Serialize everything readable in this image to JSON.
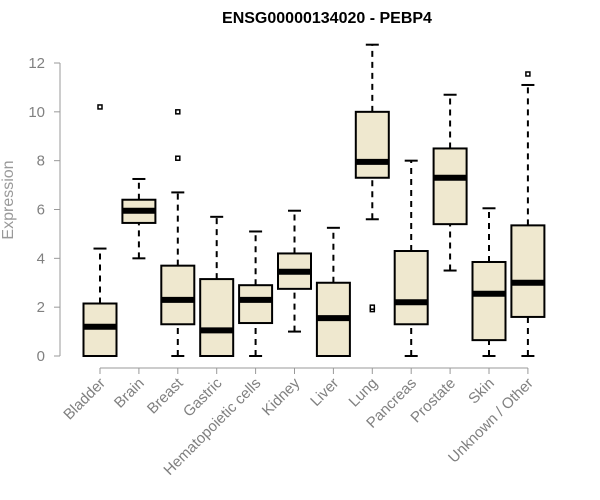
{
  "chart_data": {
    "type": "boxplot",
    "title": "ENSG00000134020 - PEBP4",
    "xlabel": "",
    "ylabel": "Expression",
    "ylim": [
      0,
      12.8
    ],
    "yticks": [
      0,
      2,
      4,
      6,
      8,
      10,
      12
    ],
    "grid": false,
    "categories": [
      "Bladder",
      "Brain",
      "Breast",
      "Gastric",
      "Hematopoietic cells",
      "Kidney",
      "Liver",
      "Lung",
      "Pancreas",
      "Prostate",
      "Skin",
      "Unknown / Other"
    ],
    "boxes": [
      {
        "name": "Bladder",
        "min": 0,
        "q1": 0,
        "median": 1.2,
        "q3": 2.15,
        "max": 4.4,
        "outliers": [
          10.2
        ]
      },
      {
        "name": "Brain",
        "min": 4.0,
        "q1": 5.45,
        "median": 5.95,
        "q3": 6.4,
        "max": 7.25,
        "outliers": []
      },
      {
        "name": "Breast",
        "min": 0,
        "q1": 1.3,
        "median": 2.3,
        "q3": 3.7,
        "max": 6.7,
        "outliers": [
          8.1,
          10.0
        ]
      },
      {
        "name": "Gastric",
        "min": 0,
        "q1": 0,
        "median": 1.05,
        "q3": 3.15,
        "max": 5.7,
        "outliers": []
      },
      {
        "name": "Hematopoietic cells",
        "min": 0,
        "q1": 1.35,
        "median": 2.3,
        "q3": 2.9,
        "max": 5.1,
        "outliers": []
      },
      {
        "name": "Kidney",
        "min": 1.0,
        "q1": 2.75,
        "median": 3.45,
        "q3": 4.2,
        "max": 5.95,
        "outliers": []
      },
      {
        "name": "Liver",
        "min": 0,
        "q1": 0,
        "median": 1.55,
        "q3": 3.0,
        "max": 5.25,
        "outliers": []
      },
      {
        "name": "Lung",
        "min": 5.6,
        "q1": 7.3,
        "median": 7.95,
        "q3": 10.0,
        "max": 12.75,
        "outliers": [
          1.9,
          2.0
        ]
      },
      {
        "name": "Pancreas",
        "min": 0,
        "q1": 1.3,
        "median": 2.2,
        "q3": 4.3,
        "max": 8.0,
        "outliers": []
      },
      {
        "name": "Prostate",
        "min": 3.5,
        "q1": 5.4,
        "median": 7.3,
        "q3": 8.5,
        "max": 10.7,
        "outliers": []
      },
      {
        "name": "Skin",
        "min": 0,
        "q1": 0.65,
        "median": 2.55,
        "q3": 3.85,
        "max": 6.05,
        "outliers": []
      },
      {
        "name": "Unknown / Other",
        "min": 0,
        "q1": 1.6,
        "median": 3.0,
        "q3": 5.35,
        "max": 11.1,
        "outliers": [
          11.55
        ]
      }
    ],
    "colors": {
      "box_fill": "#efe8cf",
      "stroke": "#000000",
      "axis": "#999999",
      "text": "#808080"
    }
  }
}
